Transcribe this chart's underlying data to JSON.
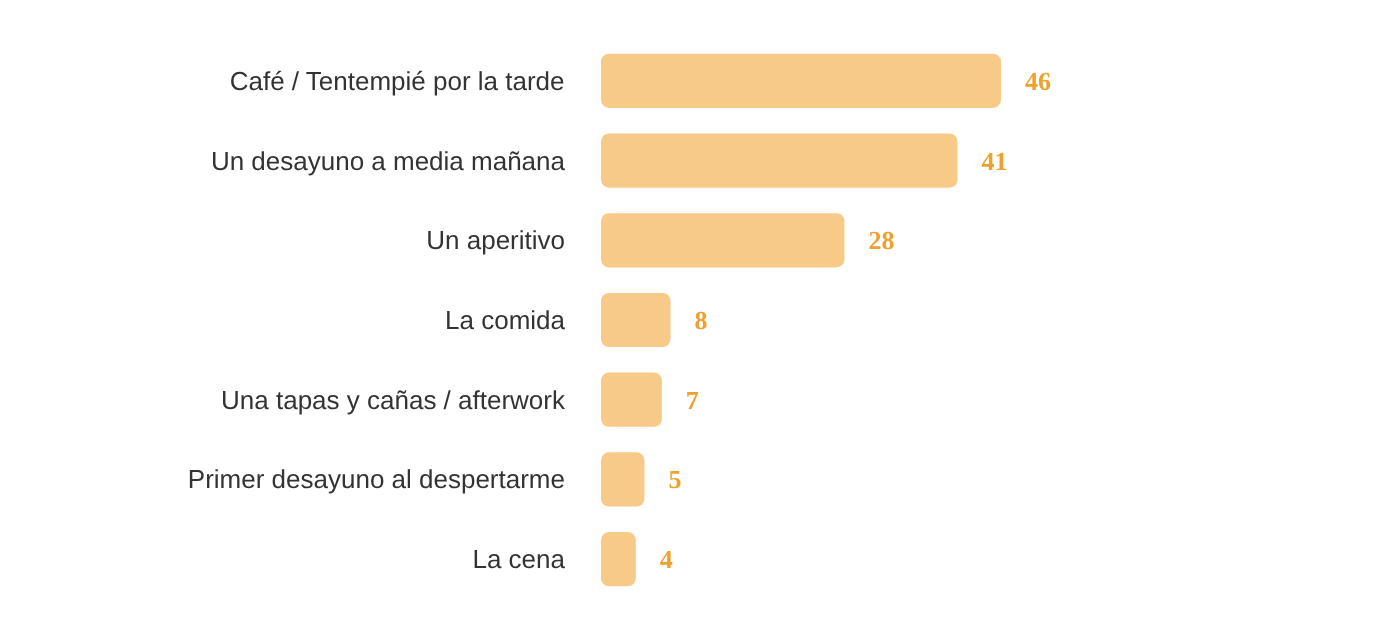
{
  "chart_data": {
    "type": "bar",
    "orientation": "horizontal",
    "categories": [
      "Café / Tentempié por la tarde",
      "Un desayuno a media mañana",
      "Un aperitivo",
      "La comida",
      "Una tapas y cañas / afterwork",
      "Primer desayuno al despertarme",
      "La cena"
    ],
    "values": [
      46,
      41,
      28,
      8,
      7,
      5,
      4
    ],
    "color": "#f8ca88",
    "data_labels": true,
    "grid": false
  }
}
